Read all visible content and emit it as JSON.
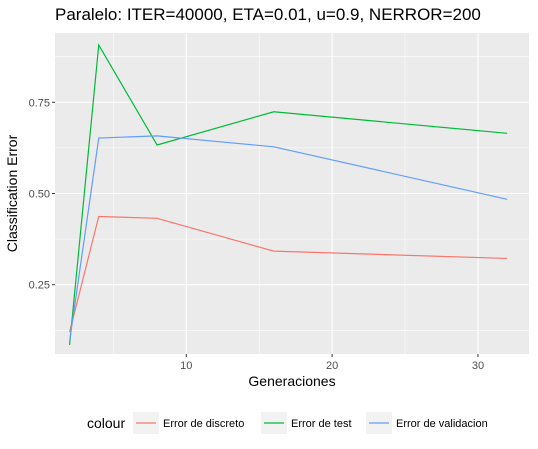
{
  "chart_data": {
    "type": "line",
    "title": "Paralelo: ITER=40000, ETA=0.01, u=0.9, NERROR=200",
    "xlabel": "Generaciones",
    "ylabel": "Classification Error",
    "xlim": [
      1,
      33.5
    ],
    "ylim": [
      0.06,
      0.94
    ],
    "xticks": [
      10,
      20,
      30
    ],
    "xtick_labels": [
      "10",
      "20",
      "30"
    ],
    "yticks": [
      0.25,
      0.5,
      0.75
    ],
    "ytick_labels": [
      "0.25",
      "0.50",
      "0.75"
    ],
    "grid": true,
    "legend": {
      "title": "colour",
      "position": "bottom"
    },
    "x": [
      2,
      4,
      8,
      16,
      32
    ],
    "series": [
      {
        "name": "Error de discreto",
        "color": "#F8766D",
        "values": [
          0.12,
          0.437,
          0.432,
          0.342,
          0.322
        ]
      },
      {
        "name": "Error de test",
        "color": "#00BA38",
        "values": [
          0.085,
          0.907,
          0.633,
          0.724,
          0.665
        ]
      },
      {
        "name": "Error de validacion",
        "color": "#619CFF",
        "values": [
          0.095,
          0.652,
          0.658,
          0.628,
          0.484
        ]
      }
    ]
  }
}
